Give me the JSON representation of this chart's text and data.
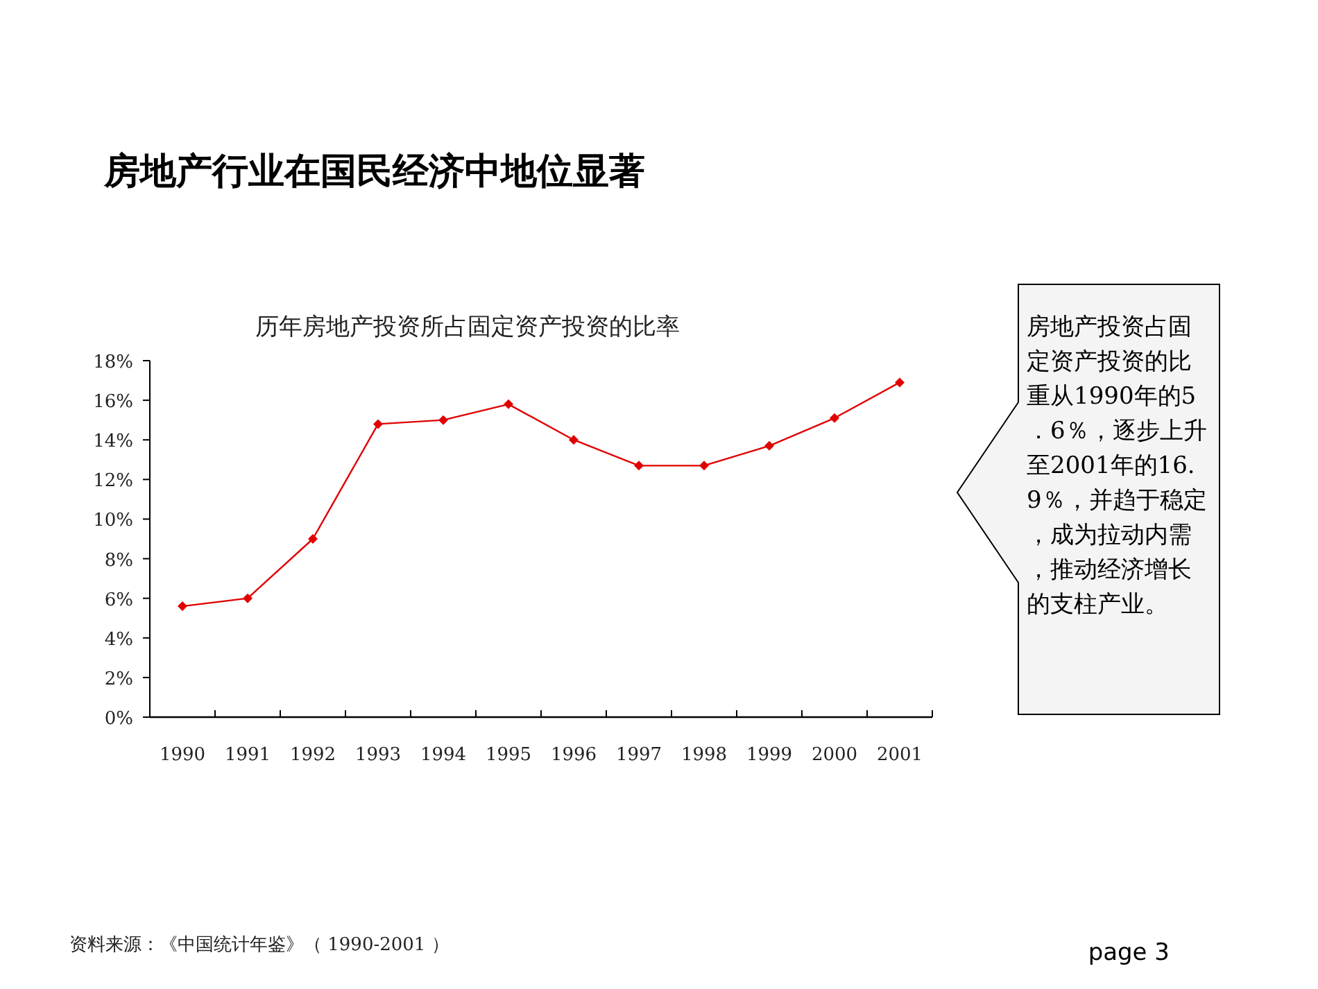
{
  "chart_data": {
    "type": "line",
    "title": "房地产行业在国民经济中地位显著",
    "subtitle": "历年房地产投资所占固定资产投资的比率",
    "categories": [
      "1990",
      "1991",
      "1992",
      "1993",
      "1994",
      "1995",
      "1996",
      "1997",
      "1998",
      "1999",
      "2000",
      "2001"
    ],
    "series": [
      {
        "color": "#e00000",
        "values": [
          5.6,
          6.0,
          9.0,
          14.8,
          15.0,
          15.8,
          14.0,
          12.7,
          12.7,
          13.7,
          15.1,
          16.9
        ]
      }
    ],
    "ylim": [
      0,
      18
    ],
    "yticks": [
      {
        "value": 0,
        "label": "0%"
      },
      {
        "value": 2,
        "label": "2%"
      },
      {
        "value": 4,
        "label": "4%"
      },
      {
        "value": 6,
        "label": "6%"
      },
      {
        "value": 8,
        "label": "8%"
      },
      {
        "value": 10,
        "label": "10%"
      },
      {
        "value": 12,
        "label": "12%"
      },
      {
        "value": 14,
        "label": "14%"
      },
      {
        "value": 16,
        "label": "16%"
      },
      {
        "value": 18,
        "label": "18%"
      }
    ],
    "marker": "diamond",
    "line_style": "solid",
    "grid": false,
    "annotations": [
      "房地产投资占固定资产投资的比重从1990年的5．6％，逐步上升至2001年的16.9％，并趋于稳定，成为拉动内需，推动经济增长的支柱产业。",
      "资料来源：《中国统计年鉴》（ 1990-2001 ）",
      "page 3"
    ]
  }
}
